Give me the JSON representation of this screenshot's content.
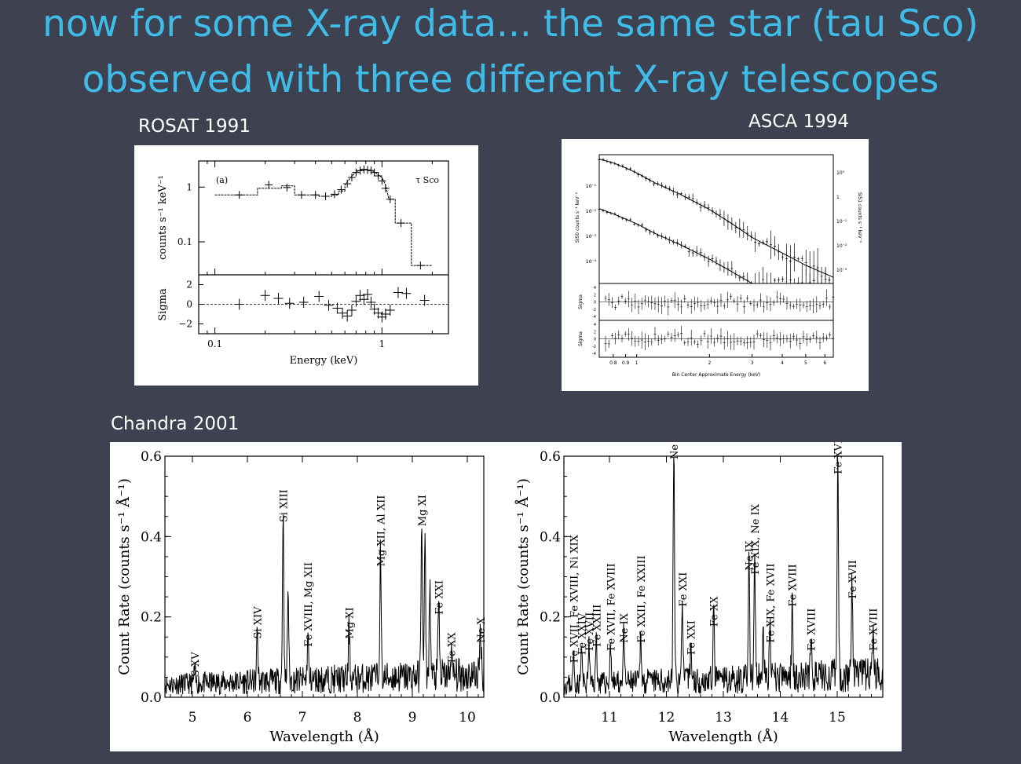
{
  "slide": {
    "title_line1": "now for some X-ray data... the same star (tau Sco)",
    "title_line2": "observed with three different X-ray telescopes",
    "rosat_caption": "ROSAT 1991",
    "asca_caption": "ASCA 1994",
    "chandra_caption": "Chandra 2001"
  },
  "colors": {
    "background": "#3d4150",
    "title": "#3fbde8",
    "caption": "#ffffff"
  },
  "chart_data": [
    {
      "type": "line",
      "panel": "rosat",
      "annotations": [
        "(a)",
        "τ Sco"
      ],
      "xlabel": "Energy (keV)",
      "ylabel": "counts s⁻¹ keV⁻¹",
      "ylabel_residual": "Sigma",
      "xscale": "log",
      "yscale": "log",
      "xlim": [
        0.08,
        2.5
      ],
      "ylim": [
        0.025,
        3
      ],
      "xticks": [
        "0.1",
        "1"
      ],
      "yticks": [
        "0.1",
        "1"
      ],
      "residual_yticks": [
        "2",
        "0",
        "−2"
      ],
      "residual_ylim": [
        -3,
        3
      ],
      "model": [
        [
          0.1,
          0.72
        ],
        [
          0.18,
          0.72
        ],
        [
          0.18,
          0.95
        ],
        [
          0.25,
          0.95
        ],
        [
          0.25,
          1.05
        ],
        [
          0.3,
          1.05
        ],
        [
          0.3,
          0.72
        ],
        [
          0.42,
          0.72
        ],
        [
          0.42,
          0.68
        ],
        [
          0.5,
          0.68
        ],
        [
          0.5,
          0.72
        ],
        [
          0.55,
          0.72
        ],
        [
          0.55,
          0.85
        ],
        [
          0.6,
          0.85
        ],
        [
          0.6,
          1.1
        ],
        [
          0.65,
          1.5
        ],
        [
          0.7,
          1.9
        ],
        [
          0.75,
          2.05
        ],
        [
          0.85,
          2.05
        ],
        [
          0.9,
          1.9
        ],
        [
          1.0,
          1.5
        ],
        [
          1.05,
          1.1
        ],
        [
          1.1,
          0.6
        ],
        [
          1.2,
          0.6
        ],
        [
          1.2,
          0.22
        ],
        [
          1.5,
          0.22
        ],
        [
          1.5,
          0.037
        ],
        [
          2.0,
          0.037
        ]
      ],
      "data": [
        {
          "x": 0.14,
          "y": 0.72
        },
        {
          "x": 0.21,
          "y": 1.1
        },
        {
          "x": 0.27,
          "y": 0.98
        },
        {
          "x": 0.33,
          "y": 0.72
        },
        {
          "x": 0.4,
          "y": 0.72
        },
        {
          "x": 0.46,
          "y": 0.68
        },
        {
          "x": 0.52,
          "y": 0.74
        },
        {
          "x": 0.57,
          "y": 0.9
        },
        {
          "x": 0.62,
          "y": 1.15
        },
        {
          "x": 0.66,
          "y": 1.5
        },
        {
          "x": 0.7,
          "y": 1.85
        },
        {
          "x": 0.74,
          "y": 2.0
        },
        {
          "x": 0.78,
          "y": 2.1
        },
        {
          "x": 0.82,
          "y": 2.05
        },
        {
          "x": 0.86,
          "y": 2.0
        },
        {
          "x": 0.9,
          "y": 1.85
        },
        {
          "x": 0.95,
          "y": 1.6
        },
        {
          "x": 1.0,
          "y": 1.3
        },
        {
          "x": 1.05,
          "y": 0.95
        },
        {
          "x": 1.12,
          "y": 0.6
        },
        {
          "x": 1.3,
          "y": 0.22
        },
        {
          "x": 1.7,
          "y": 0.037
        }
      ],
      "residuals": [
        {
          "x": 0.14,
          "y": 0.0
        },
        {
          "x": 0.2,
          "y": 0.9
        },
        {
          "x": 0.24,
          "y": 0.6
        },
        {
          "x": 0.28,
          "y": 0.1
        },
        {
          "x": 0.34,
          "y": 0.2
        },
        {
          "x": 0.42,
          "y": 0.8
        },
        {
          "x": 0.48,
          "y": -0.1
        },
        {
          "x": 0.54,
          "y": -0.4
        },
        {
          "x": 0.58,
          "y": -0.9
        },
        {
          "x": 0.62,
          "y": -1.2
        },
        {
          "x": 0.66,
          "y": -0.6
        },
        {
          "x": 0.7,
          "y": 0.3
        },
        {
          "x": 0.74,
          "y": 0.9
        },
        {
          "x": 0.78,
          "y": 0.5
        },
        {
          "x": 0.82,
          "y": 1.0
        },
        {
          "x": 0.86,
          "y": 0.2
        },
        {
          "x": 0.9,
          "y": -0.5
        },
        {
          "x": 0.95,
          "y": -0.9
        },
        {
          "x": 1.0,
          "y": -1.3
        },
        {
          "x": 1.05,
          "y": -1.0
        },
        {
          "x": 1.12,
          "y": -0.6
        },
        {
          "x": 1.25,
          "y": 1.2
        },
        {
          "x": 1.4,
          "y": 1.1
        },
        {
          "x": 1.8,
          "y": 0.4
        }
      ]
    },
    {
      "type": "line",
      "panel": "asca",
      "xlabel": "Bin Center Approximate Energy (keV)",
      "ylabel_left": "SIS0 counts s⁻¹ keV⁻¹",
      "ylabel_right": "SIS1 counts s⁻¹ keV⁻¹",
      "ylabel_residual": "Sigma",
      "xscale": "log",
      "xlim": [
        0.7,
        6.5
      ],
      "xticks": [
        "0.8",
        "0.9",
        "1",
        "2",
        "3",
        "4",
        "5",
        "6"
      ],
      "left_yticks": [
        "10⁻¹",
        "10⁻²",
        "10⁻³",
        "10⁻⁴"
      ],
      "right_yticks": [
        "10°",
        "1",
        "10⁻¹",
        "10⁻²",
        "10⁻³"
      ],
      "residual_yticks": [
        "4",
        "2",
        "0",
        "-2",
        "-4"
      ],
      "series": [
        {
          "name": "SIS0",
          "x": [
            0.7,
            0.8,
            0.9,
            1.0,
            1.2,
            1.5,
            2.0,
            2.5,
            3.0,
            4.0,
            5.0,
            6.5
          ],
          "y": [
            0.45,
            0.35,
            0.25,
            0.18,
            0.09,
            0.045,
            0.016,
            0.006,
            0.0025,
            0.0009,
            0.0004,
            0.00018
          ]
        },
        {
          "name": "SIS1",
          "x": [
            0.7,
            0.8,
            0.9,
            1.0,
            1.2,
            1.5,
            2.0,
            2.5,
            3.0,
            4.0,
            5.0,
            6.5
          ],
          "y": [
            0.017,
            0.012,
            0.0085,
            0.0062,
            0.0032,
            0.0016,
            0.0006,
            0.00025,
            0.00012,
            6e-05,
            4e-05,
            2e-05
          ]
        }
      ]
    },
    {
      "type": "line",
      "panel": "chandra-left",
      "xlabel": "Wavelength (Å)",
      "ylabel": "Count Rate (counts s⁻¹ Å⁻¹)",
      "xlim": [
        4.5,
        10.3
      ],
      "ylim": [
        0,
        0.6
      ],
      "xticks": [
        "5",
        "6",
        "7",
        "8",
        "9",
        "10"
      ],
      "yticks": [
        "0.0",
        "0.2",
        "0.4",
        "0.6"
      ],
      "lines": [
        {
          "wave": 5.04,
          "peak": 0.035,
          "label": "S XV"
        },
        {
          "wave": 6.18,
          "peak": 0.13,
          "label": "Si XIV"
        },
        {
          "wave": 6.65,
          "peak": 0.42,
          "label": "Si XIII"
        },
        {
          "wave": 6.74,
          "peak": 0.23,
          "label": ""
        },
        {
          "wave": 7.1,
          "peak": 0.11,
          "label": "Fe XVIII, Mg XII"
        },
        {
          "wave": 7.85,
          "peak": 0.13,
          "label": "Mg XI"
        },
        {
          "wave": 8.42,
          "peak": 0.31,
          "label": "Mg XII, Al XII"
        },
        {
          "wave": 9.17,
          "peak": 0.41,
          "label": "Mg XI"
        },
        {
          "wave": 9.23,
          "peak": 0.33,
          "label": ""
        },
        {
          "wave": 9.32,
          "peak": 0.23,
          "label": ""
        },
        {
          "wave": 9.48,
          "peak": 0.19,
          "label": "Fe XXI"
        },
        {
          "wave": 9.71,
          "peak": 0.07,
          "label": "Fe XX"
        },
        {
          "wave": 10.24,
          "peak": 0.12,
          "label": "Ne X"
        }
      ]
    },
    {
      "type": "line",
      "panel": "chandra-right",
      "xlabel": "Wavelength (Å)",
      "ylabel": "Count Rate (counts s⁻¹ Å⁻¹)",
      "xlim": [
        10.2,
        15.8
      ],
      "ylim": [
        0,
        0.6
      ],
      "xticks": [
        "11",
        "12",
        "13",
        "14",
        "15"
      ],
      "yticks": [
        "0.0",
        "0.2",
        "0.4",
        "0.6"
      ],
      "lines": [
        {
          "wave": 10.37,
          "peak": 0.07,
          "label": "Fe XVII, Fe XVIII, Ni XIX"
        },
        {
          "wave": 10.51,
          "peak": 0.09,
          "label": "Fe XXIV"
        },
        {
          "wave": 10.64,
          "peak": 0.1,
          "label": "Fe XVII"
        },
        {
          "wave": 10.77,
          "peak": 0.11,
          "label": "Fe XXIII"
        },
        {
          "wave": 11.02,
          "peak": 0.1,
          "label": "Fe XVII, Fe XVIII"
        },
        {
          "wave": 11.25,
          "peak": 0.12,
          "label": "Ne IX"
        },
        {
          "wave": 11.55,
          "peak": 0.12,
          "label": "Fe XXII, Fe XXIII"
        },
        {
          "wave": 12.13,
          "peak": 0.59,
          "label": "Ne X"
        },
        {
          "wave": 12.28,
          "peak": 0.21,
          "label": "Fe XXI"
        },
        {
          "wave": 12.43,
          "peak": 0.09,
          "label": "Fe XXI"
        },
        {
          "wave": 12.83,
          "peak": 0.16,
          "label": "Fe XX"
        },
        {
          "wave": 13.45,
          "peak": 0.3,
          "label": "Ne IX"
        },
        {
          "wave": 13.55,
          "peak": 0.29,
          "label": "Fe XIX, Ne IX"
        },
        {
          "wave": 13.7,
          "peak": 0.12,
          "label": ""
        },
        {
          "wave": 13.82,
          "peak": 0.12,
          "label": "Fe XIX, Fe XVII"
        },
        {
          "wave": 14.21,
          "peak": 0.21,
          "label": "Fe XVIII"
        },
        {
          "wave": 14.54,
          "peak": 0.1,
          "label": "Fe XVIII"
        },
        {
          "wave": 15.01,
          "peak": 0.54,
          "label": "Fe XVII"
        },
        {
          "wave": 15.26,
          "peak": 0.23,
          "label": "Fe XVII"
        },
        {
          "wave": 15.63,
          "peak": 0.1,
          "label": "Fe XVIII"
        }
      ]
    }
  ]
}
